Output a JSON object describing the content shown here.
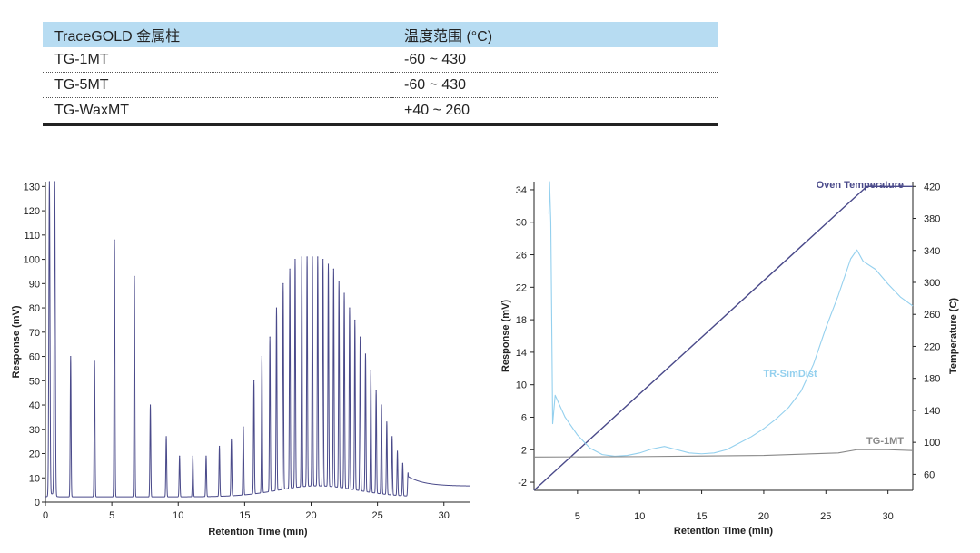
{
  "table": {
    "headers": [
      "TraceGOLD 金属柱",
      "温度范围 (°C)"
    ],
    "rows": [
      [
        "TG-1MT",
        "-60 ~ 430"
      ],
      [
        "TG-5MT",
        "-60 ~ 430"
      ],
      [
        "TG-WaxMT",
        "+40 ~ 260"
      ]
    ]
  },
  "chart_data": [
    {
      "type": "line",
      "xlabel": "Retention Time (min)",
      "ylabel": "Response (mV)",
      "xlim": [
        0,
        32
      ],
      "ylim": [
        0,
        132
      ],
      "xticks": [
        0,
        5,
        10,
        15,
        20,
        25,
        30
      ],
      "yticks": [
        0,
        10,
        20,
        30,
        40,
        50,
        60,
        70,
        80,
        90,
        100,
        110,
        120,
        130
      ],
      "line_color": "#4a4a8a",
      "baseline": 2.2,
      "peaks": [
        {
          "x": 0.3,
          "y": 132
        },
        {
          "x": 0.7,
          "y": 132
        },
        {
          "x": 1.9,
          "y": 60
        },
        {
          "x": 3.7,
          "y": 58
        },
        {
          "x": 5.2,
          "y": 108
        },
        {
          "x": 6.7,
          "y": 93
        },
        {
          "x": 7.9,
          "y": 40
        },
        {
          "x": 9.1,
          "y": 27
        },
        {
          "x": 10.1,
          "y": 19
        },
        {
          "x": 11.1,
          "y": 19
        },
        {
          "x": 12.1,
          "y": 19
        },
        {
          "x": 13.1,
          "y": 23
        },
        {
          "x": 14.0,
          "y": 26
        },
        {
          "x": 14.9,
          "y": 31
        },
        {
          "x": 15.7,
          "y": 50
        },
        {
          "x": 16.3,
          "y": 60
        },
        {
          "x": 16.9,
          "y": 68
        },
        {
          "x": 17.4,
          "y": 80
        },
        {
          "x": 17.9,
          "y": 90
        },
        {
          "x": 18.4,
          "y": 96
        },
        {
          "x": 18.8,
          "y": 100
        },
        {
          "x": 19.3,
          "y": 101
        },
        {
          "x": 19.7,
          "y": 101
        },
        {
          "x": 20.1,
          "y": 101
        },
        {
          "x": 20.5,
          "y": 101
        },
        {
          "x": 20.9,
          "y": 100
        },
        {
          "x": 21.3,
          "y": 98
        },
        {
          "x": 21.7,
          "y": 96
        },
        {
          "x": 22.1,
          "y": 91
        },
        {
          "x": 22.5,
          "y": 86
        },
        {
          "x": 22.9,
          "y": 80
        },
        {
          "x": 23.3,
          "y": 75
        },
        {
          "x": 23.7,
          "y": 68
        },
        {
          "x": 24.1,
          "y": 61
        },
        {
          "x": 24.5,
          "y": 54
        },
        {
          "x": 24.9,
          "y": 46
        },
        {
          "x": 25.3,
          "y": 40
        },
        {
          "x": 25.7,
          "y": 33
        },
        {
          "x": 26.1,
          "y": 27
        },
        {
          "x": 26.5,
          "y": 21
        },
        {
          "x": 26.9,
          "y": 16
        },
        {
          "x": 27.3,
          "y": 12
        }
      ]
    },
    {
      "type": "line",
      "xlabel": "Retention Time (min)",
      "ylabel": "Response (mV)",
      "y2label": "Temperature (C)",
      "xlim": [
        1.5,
        32
      ],
      "ylim": [
        -3,
        35
      ],
      "y2lim": [
        40,
        426
      ],
      "xticks": [
        5,
        10,
        15,
        20,
        25,
        30
      ],
      "yticks": [
        -2,
        2,
        6,
        10,
        14,
        18,
        22,
        26,
        30,
        34
      ],
      "y2ticks": [
        60,
        100,
        140,
        180,
        220,
        260,
        300,
        340,
        380,
        420
      ],
      "series": [
        {
          "name": "Oven Temperature",
          "axis": "right",
          "color": "#4a4a8a",
          "points": [
            [
              1.5,
              40
            ],
            [
              28.3,
              420
            ],
            [
              32,
              420
            ]
          ]
        },
        {
          "name": "TR-SimDist",
          "axis": "left",
          "color": "#94d0ee",
          "points": [
            [
              2.7,
              31
            ],
            [
              2.75,
              35
            ],
            [
              2.85,
              30
            ],
            [
              3.0,
              5.2
            ],
            [
              3.2,
              8.7
            ],
            [
              4,
              6
            ],
            [
              5,
              3.8
            ],
            [
              6,
              2.2
            ],
            [
              7,
              1.4
            ],
            [
              8,
              1.2
            ],
            [
              9,
              1.3
            ],
            [
              10,
              1.6
            ],
            [
              11,
              2.1
            ],
            [
              12,
              2.4
            ],
            [
              13,
              2.0
            ],
            [
              14,
              1.6
            ],
            [
              15,
              1.5
            ],
            [
              16,
              1.6
            ],
            [
              17,
              2.0
            ],
            [
              18,
              2.8
            ],
            [
              19,
              3.6
            ],
            [
              20,
              4.6
            ],
            [
              21,
              5.8
            ],
            [
              22,
              7.2
            ],
            [
              23,
              9.2
            ],
            [
              24,
              12.5
            ],
            [
              25,
              17
            ],
            [
              26,
              21
            ],
            [
              27,
              25.5
            ],
            [
              27.5,
              26.6
            ],
            [
              28,
              25.2
            ],
            [
              29,
              24.2
            ],
            [
              30,
              22.4
            ],
            [
              31,
              20.8
            ],
            [
              32,
              19.7
            ]
          ]
        },
        {
          "name": "TG-1MT",
          "axis": "left",
          "color": "#888888",
          "points": [
            [
              1.5,
              1.1
            ],
            [
              10,
              1.15
            ],
            [
              20,
              1.3
            ],
            [
              26,
              1.6
            ],
            [
              27.5,
              2.0
            ],
            [
              30,
              2.0
            ],
            [
              32,
              1.9
            ]
          ]
        }
      ]
    }
  ]
}
